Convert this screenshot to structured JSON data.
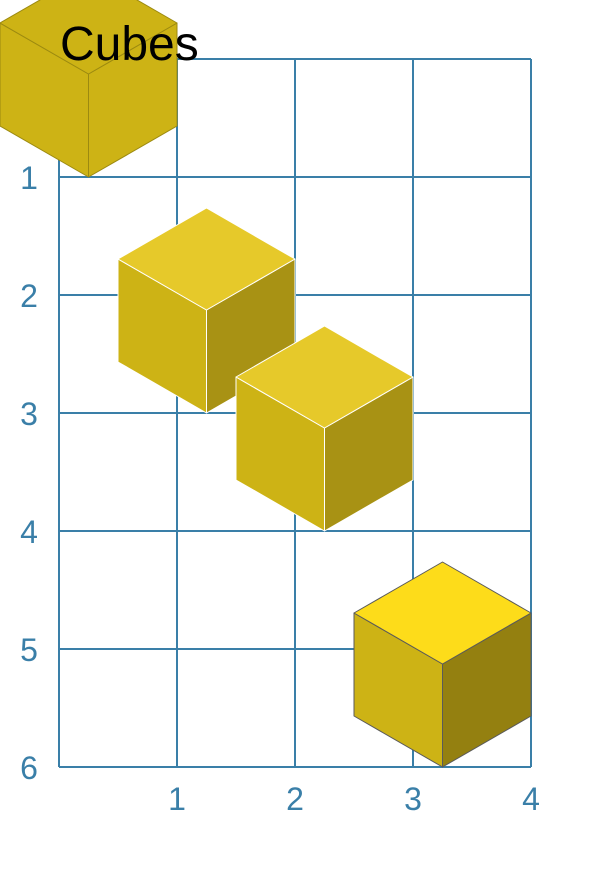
{
  "title": "Cubes",
  "grid": {
    "cols": 4,
    "rows": 6,
    "x_ticks": [
      "1",
      "2",
      "3",
      "4"
    ],
    "y_ticks": [
      "1",
      "2",
      "3",
      "4",
      "5",
      "6"
    ],
    "line_color": "#3a7fa8",
    "tick_color": "#3a7fa8"
  },
  "cubes": [
    {
      "col": 1,
      "row": 1,
      "top": "#cdb315",
      "left": "#cdb315",
      "right": "#cdb315",
      "edge": "#9c8a10"
    },
    {
      "col": 2,
      "row": 3,
      "top": "#e6c92a",
      "left": "#cdb315",
      "right": "#a89214",
      "edge": "#ffffff"
    },
    {
      "col": 3,
      "row": 4,
      "top": "#e6c92a",
      "left": "#cdb315",
      "right": "#a89214",
      "edge": "#ffffff"
    },
    {
      "col": 4,
      "row": 6,
      "top": "#fddc1a",
      "left": "#cdb315",
      "right": "#948010",
      "edge": "#5a5a5a"
    }
  ]
}
